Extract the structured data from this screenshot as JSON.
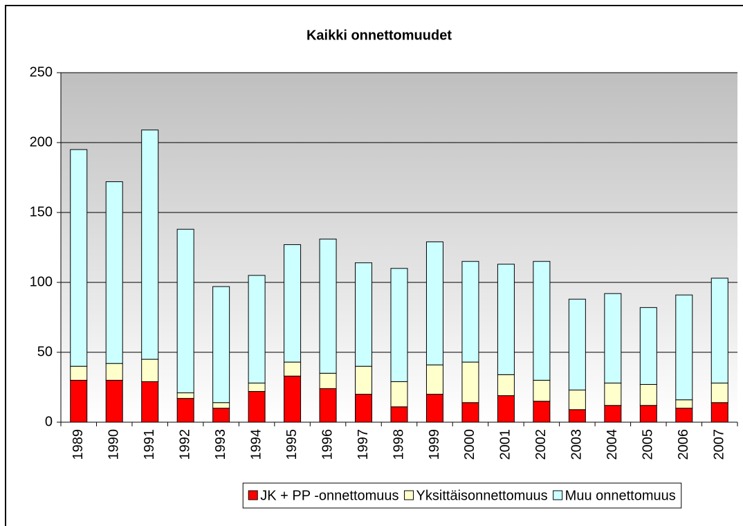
{
  "chart_data": {
    "type": "stacked_bar",
    "title": "Kaikki onnettomuudet",
    "categories": [
      "1989",
      "1990",
      "1991",
      "1992",
      "1993",
      "1994",
      "1995",
      "1996",
      "1997",
      "1998",
      "1999",
      "2000",
      "2001",
      "2002",
      "2003",
      "2004",
      "2005",
      "2006",
      "2007"
    ],
    "series": [
      {
        "name": "JK + PP -onnettomuus",
        "color": "#ff0000",
        "values": [
          30,
          30,
          29,
          17,
          10,
          22,
          33,
          24,
          20,
          11,
          20,
          14,
          19,
          15,
          9,
          12,
          12,
          10,
          14
        ]
      },
      {
        "name": "Yksittäisonnettomuus",
        "color": "#ffffcc",
        "values": [
          10,
          12,
          16,
          4,
          4,
          6,
          10,
          11,
          20,
          18,
          21,
          29,
          15,
          15,
          14,
          16,
          15,
          6,
          14
        ]
      },
      {
        "name": "Muu onnettomuus",
        "color": "#ccffff",
        "values": [
          155,
          130,
          164,
          117,
          83,
          77,
          84,
          96,
          74,
          81,
          88,
          72,
          79,
          85,
          65,
          64,
          55,
          75,
          75
        ]
      }
    ],
    "ylim": [
      0,
      250
    ],
    "yticks": [
      0,
      50,
      100,
      150,
      200,
      250
    ],
    "grid": true,
    "legend": "bottom"
  }
}
